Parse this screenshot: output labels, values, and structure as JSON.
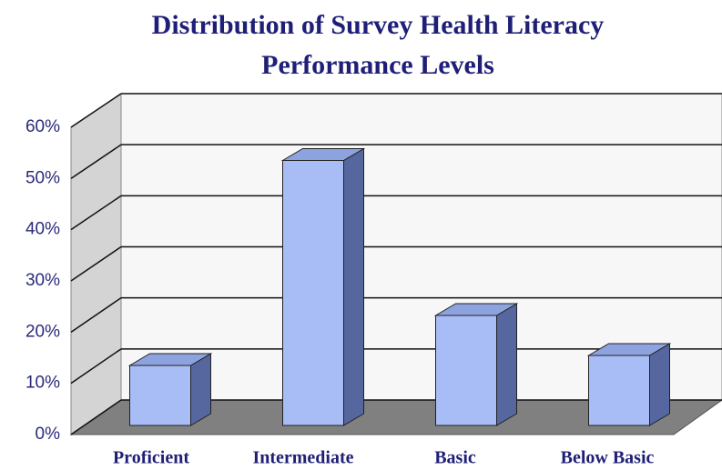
{
  "chart_data": {
    "type": "bar3d",
    "title_lines": [
      "Distribution of Survey Health Literacy",
      "Performance Levels"
    ],
    "categories": [
      "Proficient",
      "Intermediate",
      "Basic",
      "Below Basic"
    ],
    "values": [
      12,
      53,
      22,
      14
    ],
    "color": "#a8bdf5",
    "ylim": [
      0,
      60
    ],
    "yticks": [
      {
        "value": 0,
        "label": "0%"
      },
      {
        "value": 10,
        "label": "10%"
      },
      {
        "value": 20,
        "label": "20%"
      },
      {
        "value": 30,
        "label": "30%"
      },
      {
        "value": 40,
        "label": "40%"
      },
      {
        "value": 50,
        "label": "50%"
      },
      {
        "value": 60,
        "label": "60%"
      }
    ],
    "grid": true
  }
}
